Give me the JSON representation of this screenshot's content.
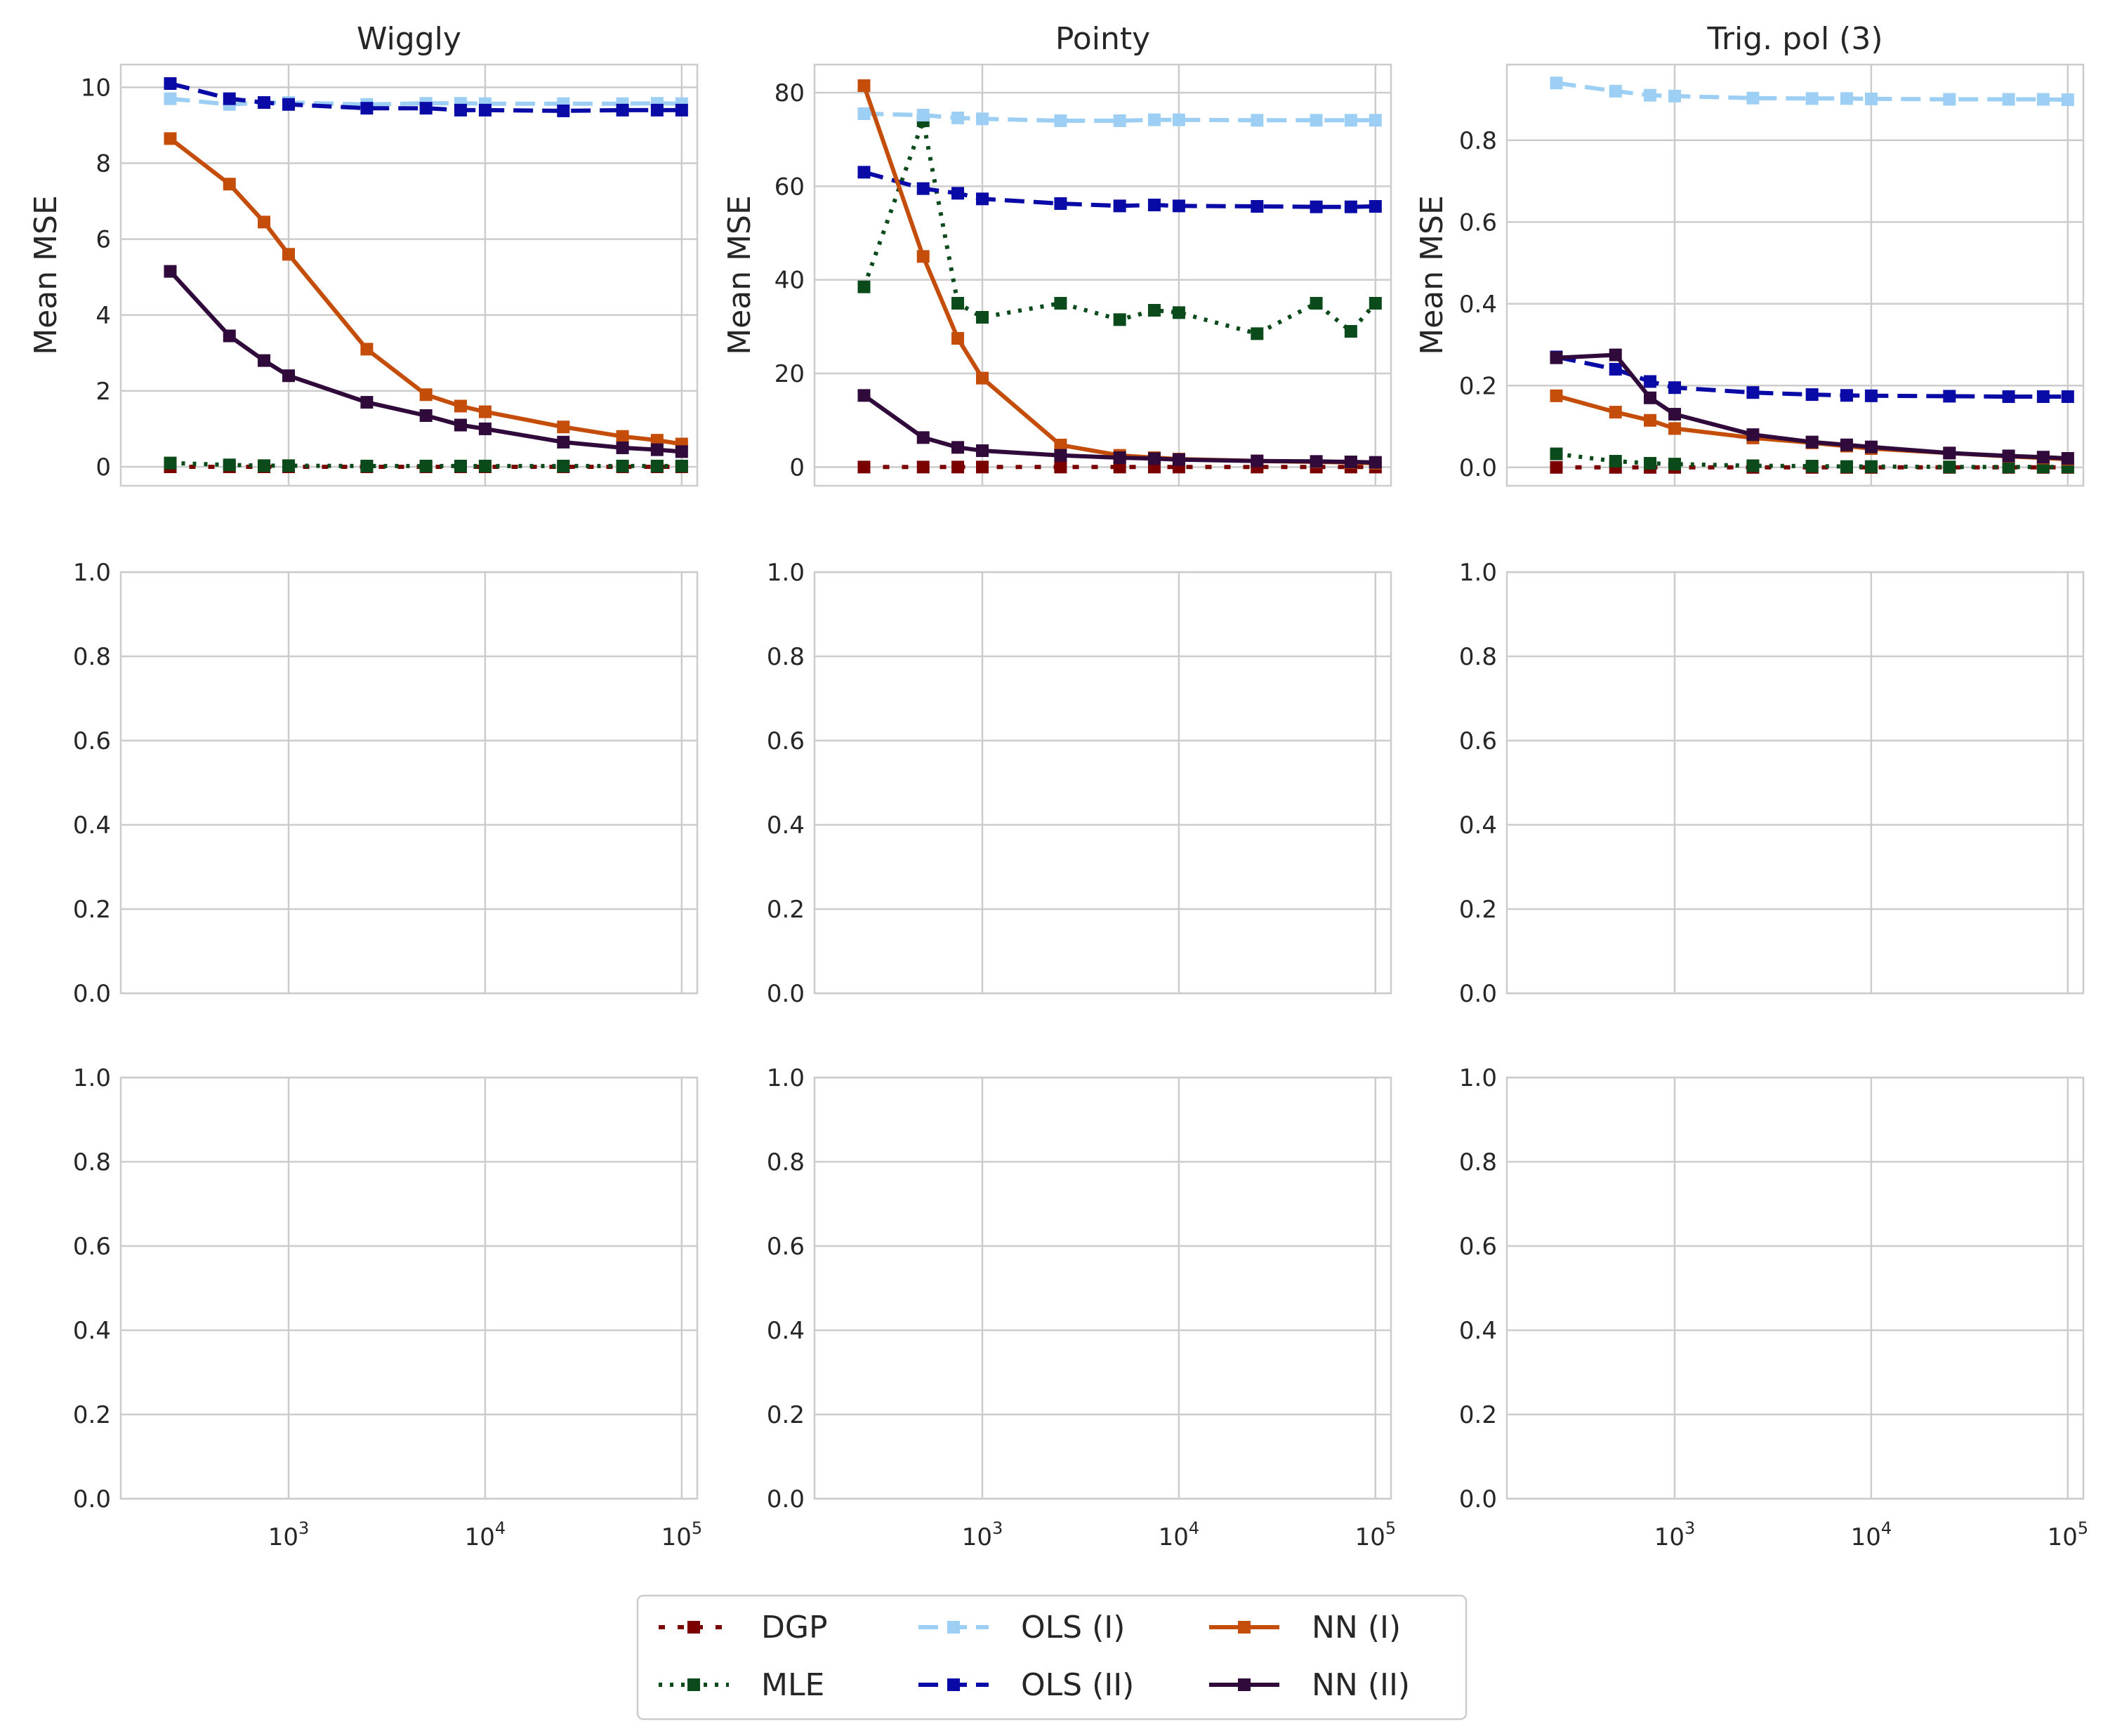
{
  "chart_data": {
    "type": "line",
    "x_scale": "log",
    "x_ticks": [
      1000,
      10000,
      100000
    ],
    "x_tick_labels": [
      {
        "base": "10",
        "exp": "3"
      },
      {
        "base": "10",
        "exp": "4"
      },
      {
        "base": "10",
        "exp": "5"
      }
    ],
    "x": [
      250,
      500,
      750,
      1000,
      2500,
      5000,
      7500,
      10000,
      25000,
      50000,
      75000,
      100000
    ],
    "xlim": [
      140,
      120000
    ],
    "grid": true,
    "legend": {
      "placement": "bottom-center",
      "columns": 3,
      "entries": [
        "DGP",
        "MLE",
        "OLS (I)",
        "OLS (II)",
        "NN (I)",
        "NN (II)"
      ]
    },
    "series_styles": [
      {
        "name": "DGP",
        "color": "#7a0000",
        "dash": "dotted-square"
      },
      {
        "name": "MLE",
        "color": "#0b4a1a",
        "dash": "dotted"
      },
      {
        "name": "OLS (I)",
        "color": "#9dcff5",
        "dash": "dashed"
      },
      {
        "name": "OLS (II)",
        "color": "#0a0aa6",
        "dash": "dashed"
      },
      {
        "name": "NN (I)",
        "color": "#c44d0a",
        "dash": "solid"
      },
      {
        "name": "NN (II)",
        "color": "#300a3a",
        "dash": "solid"
      }
    ],
    "panels": [
      {
        "title": "Wiggly",
        "ylabel": "Mean MSE",
        "ylim": [
          -0.5,
          10.6
        ],
        "yticks": [
          0,
          2,
          4,
          6,
          8,
          10
        ],
        "ytick_labels": [
          "0",
          "2",
          "4",
          "6",
          "8",
          "10"
        ],
        "series": [
          {
            "name": "DGP",
            "values": [
              0.0,
              0.0,
              0.0,
              0.0,
              0.0,
              0.0,
              0.0,
              0.0,
              0.0,
              0.0,
              0.0,
              0.0
            ]
          },
          {
            "name": "MLE",
            "values": [
              0.1,
              0.05,
              0.03,
              0.03,
              0.02,
              0.02,
              0.02,
              0.02,
              0.02,
              0.02,
              0.02,
              0.02
            ]
          },
          {
            "name": "OLS (I)",
            "values": [
              9.7,
              9.55,
              9.6,
              9.6,
              9.55,
              9.58,
              9.58,
              9.57,
              9.57,
              9.57,
              9.58,
              9.57
            ]
          },
          {
            "name": "OLS (II)",
            "values": [
              10.1,
              9.7,
              9.6,
              9.55,
              9.45,
              9.45,
              9.4,
              9.4,
              9.38,
              9.4,
              9.4,
              9.4
            ]
          },
          {
            "name": "NN (I)",
            "values": [
              8.65,
              7.45,
              6.45,
              5.6,
              3.1,
              1.9,
              1.6,
              1.45,
              1.05,
              0.8,
              0.7,
              0.6
            ]
          },
          {
            "name": "NN (II)",
            "values": [
              5.15,
              3.45,
              2.8,
              2.4,
              1.7,
              1.35,
              1.1,
              1.0,
              0.65,
              0.5,
              0.45,
              0.4
            ]
          }
        ]
      },
      {
        "title": "Pointy",
        "ylabel": "Mean MSE",
        "ylim": [
          -4,
          86
        ],
        "yticks": [
          0,
          20,
          40,
          60,
          80
        ],
        "ytick_labels": [
          "0",
          "20",
          "40",
          "60",
          "80"
        ],
        "series": [
          {
            "name": "DGP",
            "values": [
              0.0,
              0.0,
              0.0,
              0.0,
              0.0,
              0.0,
              0.0,
              0.0,
              0.0,
              0.0,
              0.0,
              0.0
            ]
          },
          {
            "name": "MLE",
            "values": [
              38.5,
              74.0,
              35.0,
              32.0,
              35.0,
              31.5,
              33.5,
              33.0,
              28.5,
              35.0,
              29.0,
              35.0
            ]
          },
          {
            "name": "OLS (I)",
            "values": [
              75.5,
              75.2,
              74.6,
              74.4,
              74.0,
              74.0,
              74.2,
              74.2,
              74.1,
              74.1,
              74.1,
              74.1
            ]
          },
          {
            "name": "OLS (II)",
            "values": [
              63.0,
              59.5,
              58.5,
              57.3,
              56.3,
              55.8,
              56.0,
              55.8,
              55.7,
              55.6,
              55.6,
              55.7
            ]
          },
          {
            "name": "NN (I)",
            "values": [
              81.5,
              45.0,
              27.5,
              19.0,
              4.7,
              2.5,
              2.0,
              1.7,
              1.3,
              1.1,
              1.0,
              0.8
            ]
          },
          {
            "name": "NN (II)",
            "values": [
              15.3,
              6.3,
              4.2,
              3.5,
              2.5,
              2.0,
              1.8,
              1.6,
              1.3,
              1.2,
              1.1,
              1.0
            ]
          }
        ]
      },
      {
        "title": "Trig. pol (3)",
        "ylabel": "Mean MSE",
        "ylim": [
          -0.045,
          0.985
        ],
        "yticks": [
          0.0,
          0.2,
          0.4,
          0.6,
          0.8
        ],
        "ytick_labels": [
          "0.0",
          "0.2",
          "0.4",
          "0.6",
          "0.8"
        ],
        "series": [
          {
            "name": "DGP",
            "values": [
              0.0,
              0.0,
              0.0,
              0.0,
              0.0,
              0.0,
              0.0,
              0.0,
              0.0,
              0.0,
              0.0,
              0.0
            ]
          },
          {
            "name": "MLE",
            "values": [
              0.033,
              0.015,
              0.01,
              0.008,
              0.004,
              0.003,
              0.002,
              0.002,
              0.001,
              0.001,
              0.001,
              0.001
            ]
          },
          {
            "name": "OLS (I)",
            "values": [
              0.94,
              0.92,
              0.91,
              0.908,
              0.903,
              0.902,
              0.902,
              0.901,
              0.9,
              0.9,
              0.9,
              0.899
            ]
          },
          {
            "name": "OLS (II)",
            "values": [
              0.27,
              0.24,
              0.21,
              0.195,
              0.183,
              0.178,
              0.176,
              0.175,
              0.174,
              0.173,
              0.173,
              0.173
            ]
          },
          {
            "name": "NN (I)",
            "values": [
              0.175,
              0.135,
              0.115,
              0.095,
              0.072,
              0.06,
              0.052,
              0.046,
              0.035,
              0.027,
              0.023,
              0.02
            ]
          },
          {
            "name": "NN (II)",
            "values": [
              0.268,
              0.275,
              0.17,
              0.13,
              0.08,
              0.062,
              0.055,
              0.05,
              0.035,
              0.028,
              0.025,
              0.022
            ]
          }
        ]
      },
      {
        "title": "",
        "ylim": [
          0,
          1
        ],
        "yticks": [
          0,
          0.2,
          0.4,
          0.6,
          0.8,
          1.0
        ],
        "ytick_labels": [
          "0.0",
          "0.2",
          "0.4",
          "0.6",
          "0.8",
          "1.0"
        ],
        "series": []
      },
      {
        "title": "",
        "ylim": [
          0,
          1
        ],
        "yticks": [
          0,
          0.2,
          0.4,
          0.6,
          0.8,
          1.0
        ],
        "ytick_labels": [
          "0.0",
          "0.2",
          "0.4",
          "0.6",
          "0.8",
          "1.0"
        ],
        "series": []
      },
      {
        "title": "",
        "ylim": [
          0,
          1
        ],
        "yticks": [
          0,
          0.2,
          0.4,
          0.6,
          0.8,
          1.0
        ],
        "ytick_labels": [
          "0.0",
          "0.2",
          "0.4",
          "0.6",
          "0.8",
          "1.0"
        ],
        "series": []
      },
      {
        "title": "",
        "ylim": [
          0,
          1
        ],
        "yticks": [
          0,
          0.2,
          0.4,
          0.6,
          0.8,
          1.0
        ],
        "ytick_labels": [
          "0.0",
          "0.2",
          "0.4",
          "0.6",
          "0.8",
          "1.0"
        ],
        "series": [],
        "show_xticks": true
      },
      {
        "title": "",
        "ylim": [
          0,
          1
        ],
        "yticks": [
          0,
          0.2,
          0.4,
          0.6,
          0.8,
          1.0
        ],
        "ytick_labels": [
          "0.0",
          "0.2",
          "0.4",
          "0.6",
          "0.8",
          "1.0"
        ],
        "series": [],
        "show_xticks": true
      },
      {
        "title": "",
        "ylim": [
          0,
          1
        ],
        "yticks": [
          0,
          0.2,
          0.4,
          0.6,
          0.8,
          1.0
        ],
        "ytick_labels": [
          "0.0",
          "0.2",
          "0.4",
          "0.6",
          "0.8",
          "1.0"
        ],
        "series": [],
        "show_xticks": true
      }
    ]
  }
}
